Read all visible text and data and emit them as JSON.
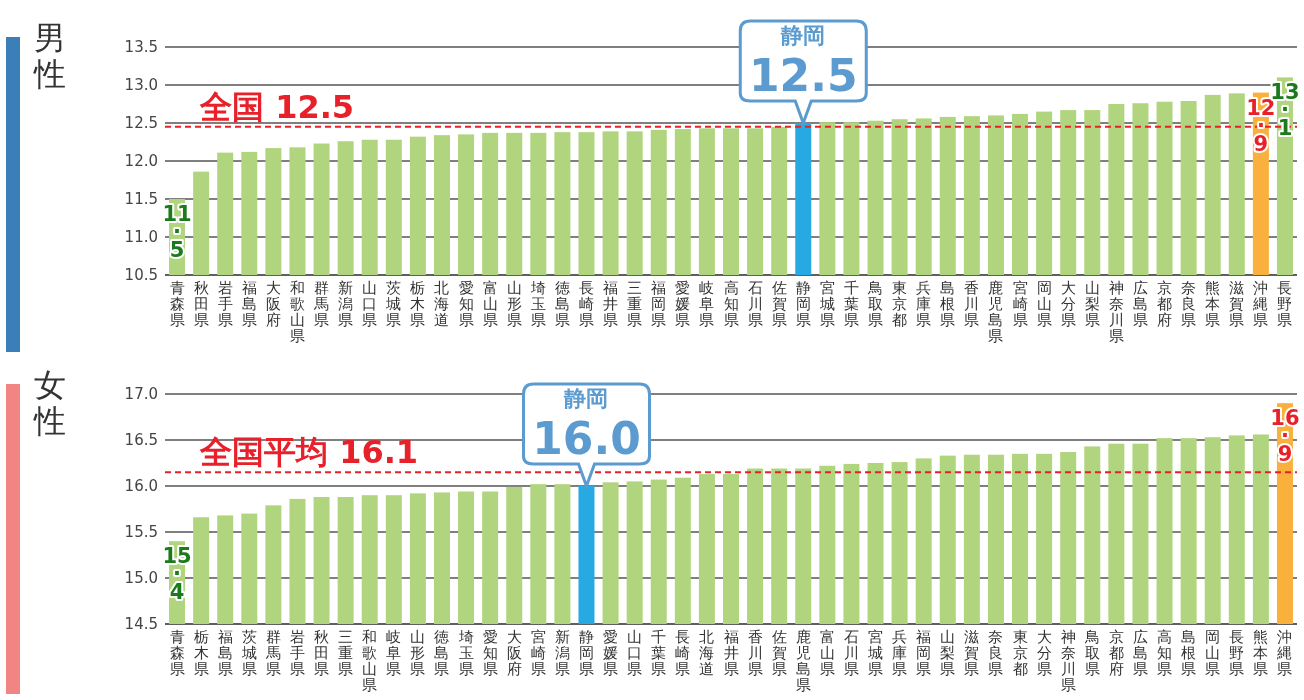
{
  "chart_data": [
    {
      "type": "bar",
      "title": "男性",
      "categories": [
        "青森県",
        "秋田県",
        "岩手県",
        "福島県",
        "大阪府",
        "和歌山県",
        "群馬県",
        "新潟県",
        "山口県",
        "茨城県",
        "栃木県",
        "北海道",
        "愛知県",
        "富山県",
        "山形県",
        "埼玉県",
        "徳島県",
        "長崎県",
        "福井県",
        "三重県",
        "福岡県",
        "愛媛県",
        "岐阜県",
        "高知県",
        "石川県",
        "佐賀県",
        "静岡県",
        "宮城県",
        "千葉県",
        "鳥取県",
        "東京都",
        "兵庫県",
        "島根県",
        "香川県",
        "鹿児島県",
        "宮崎県",
        "岡山県",
        "大分県",
        "山梨県",
        "神奈川県",
        "広島県",
        "京都府",
        "奈良県",
        "熊本県",
        "滋賀県",
        "沖縄県",
        "長野県"
      ],
      "values": [
        11.5,
        11.86,
        12.11,
        12.12,
        12.17,
        12.18,
        12.23,
        12.26,
        12.28,
        12.28,
        12.32,
        12.34,
        12.35,
        12.37,
        12.37,
        12.37,
        12.38,
        12.38,
        12.39,
        12.39,
        12.41,
        12.42,
        12.43,
        12.43,
        12.43,
        12.45,
        12.5,
        12.51,
        12.51,
        12.53,
        12.55,
        12.56,
        12.58,
        12.59,
        12.6,
        12.62,
        12.65,
        12.67,
        12.67,
        12.75,
        12.76,
        12.78,
        12.79,
        12.87,
        12.89,
        12.9,
        13.1
      ],
      "colors": [
        "#b1d57e",
        "#b1d57e",
        "#b1d57e",
        "#b1d57e",
        "#b1d57e",
        "#b1d57e",
        "#b1d57e",
        "#b1d57e",
        "#b1d57e",
        "#b1d57e",
        "#b1d57e",
        "#b1d57e",
        "#b1d57e",
        "#b1d57e",
        "#b1d57e",
        "#b1d57e",
        "#b1d57e",
        "#b1d57e",
        "#b1d57e",
        "#b1d57e",
        "#b1d57e",
        "#b1d57e",
        "#b1d57e",
        "#b1d57e",
        "#b1d57e",
        "#b1d57e",
        "#27a9e1",
        "#b1d57e",
        "#b1d57e",
        "#b1d57e",
        "#b1d57e",
        "#b1d57e",
        "#b1d57e",
        "#b1d57e",
        "#b1d57e",
        "#b1d57e",
        "#b1d57e",
        "#b1d57e",
        "#b1d57e",
        "#b1d57e",
        "#b1d57e",
        "#b1d57e",
        "#b1d57e",
        "#b1d57e",
        "#b1d57e",
        "#f9b03d",
        "#b1d57e"
      ],
      "value_labels": [
        "11.5",
        null,
        null,
        null,
        null,
        null,
        null,
        null,
        null,
        null,
        null,
        null,
        null,
        null,
        null,
        null,
        null,
        null,
        null,
        null,
        null,
        null,
        null,
        null,
        null,
        null,
        null,
        null,
        null,
        null,
        null,
        null,
        null,
        null,
        null,
        null,
        null,
        null,
        null,
        null,
        null,
        null,
        null,
        null,
        null,
        "12.9",
        "13.1"
      ],
      "ylim": [
        10.5,
        13.5
      ],
      "yticks": [
        10.5,
        {
          "value": 11,
          "label": "11.0"
        },
        11.5,
        {
          "value": 12,
          "label": "12.0"
        },
        12.5,
        {
          "value": 13,
          "label": "13.0"
        },
        13.5
      ],
      "grid": "y",
      "ref_lines": [
        {
          "axis": "y",
          "value": 12.45,
          "label": "全国 12.5",
          "color": "#e8202a",
          "line_style": "dashed"
        }
      ],
      "annotations": [
        {
          "text": "静岡\n12.5",
          "x": "静岡県",
          "y": 12.5
        }
      ]
    },
    {
      "type": "bar",
      "title": "女性",
      "categories": [
        "青森県",
        "栃木県",
        "福島県",
        "茨城県",
        "群馬県",
        "岩手県",
        "秋田県",
        "三重県",
        "和歌山県",
        "岐阜県",
        "山形県",
        "徳島県",
        "埼玉県",
        "愛知県",
        "大阪府",
        "宮崎県",
        "新潟県",
        "静岡県",
        "愛媛県",
        "山口県",
        "千葉県",
        "長崎県",
        "北海道",
        "福井県",
        "香川県",
        "佐賀県",
        "鹿児島県",
        "富山県",
        "石川県",
        "宮城県",
        "兵庫県",
        "福岡県",
        "山梨県",
        "滋賀県",
        "奈良県",
        "東京都",
        "大分県",
        "神奈川県",
        "鳥取県",
        "京都府",
        "広島県",
        "高知県",
        "島根県",
        "岡山県",
        "長野県",
        "熊本県",
        "沖縄県"
      ],
      "values": [
        15.4,
        15.66,
        15.68,
        15.7,
        15.79,
        15.86,
        15.88,
        15.88,
        15.9,
        15.9,
        15.92,
        15.93,
        15.94,
        15.94,
        15.99,
        16.02,
        16.02,
        16.0,
        16.04,
        16.05,
        16.07,
        16.09,
        16.13,
        16.13,
        16.19,
        16.19,
        16.19,
        16.22,
        16.24,
        16.25,
        16.26,
        16.3,
        16.33,
        16.34,
        16.34,
        16.35,
        16.35,
        16.37,
        16.43,
        16.46,
        16.46,
        16.52,
        16.52,
        16.53,
        16.55,
        16.56,
        16.9
      ],
      "colors": [
        "#b1d57e",
        "#b1d57e",
        "#b1d57e",
        "#b1d57e",
        "#b1d57e",
        "#b1d57e",
        "#b1d57e",
        "#b1d57e",
        "#b1d57e",
        "#b1d57e",
        "#b1d57e",
        "#b1d57e",
        "#b1d57e",
        "#b1d57e",
        "#b1d57e",
        "#b1d57e",
        "#b1d57e",
        "#27a9e1",
        "#b1d57e",
        "#b1d57e",
        "#b1d57e",
        "#b1d57e",
        "#b1d57e",
        "#b1d57e",
        "#b1d57e",
        "#b1d57e",
        "#b1d57e",
        "#b1d57e",
        "#b1d57e",
        "#b1d57e",
        "#b1d57e",
        "#b1d57e",
        "#b1d57e",
        "#b1d57e",
        "#b1d57e",
        "#b1d57e",
        "#b1d57e",
        "#b1d57e",
        "#b1d57e",
        "#b1d57e",
        "#b1d57e",
        "#b1d57e",
        "#b1d57e",
        "#b1d57e",
        "#b1d57e",
        "#b1d57e",
        "#f9b03d"
      ],
      "value_labels": [
        "15.4",
        null,
        null,
        null,
        null,
        null,
        null,
        null,
        null,
        null,
        null,
        null,
        null,
        null,
        null,
        null,
        null,
        null,
        null,
        null,
        null,
        null,
        null,
        null,
        null,
        null,
        null,
        null,
        null,
        null,
        null,
        null,
        null,
        null,
        null,
        null,
        null,
        null,
        null,
        null,
        null,
        null,
        null,
        null,
        null,
        null,
        "16.9"
      ],
      "ylim": [
        14.5,
        17.0
      ],
      "yticks": [
        14.5,
        {
          "value": 15,
          "label": "15.0"
        },
        15.5,
        {
          "value": 16,
          "label": "16.0"
        },
        16.5,
        {
          "value": 17,
          "label": "17.0"
        }
      ],
      "grid": "y",
      "ref_lines": [
        {
          "axis": "y",
          "value": 16.15,
          "label": "全国平均 16.1",
          "color": "#e8202a",
          "line_style": "dashed"
        }
      ],
      "annotations": [
        {
          "text": "静岡\n16.0",
          "x": "静岡県",
          "y": 16.0
        }
      ]
    }
  ]
}
